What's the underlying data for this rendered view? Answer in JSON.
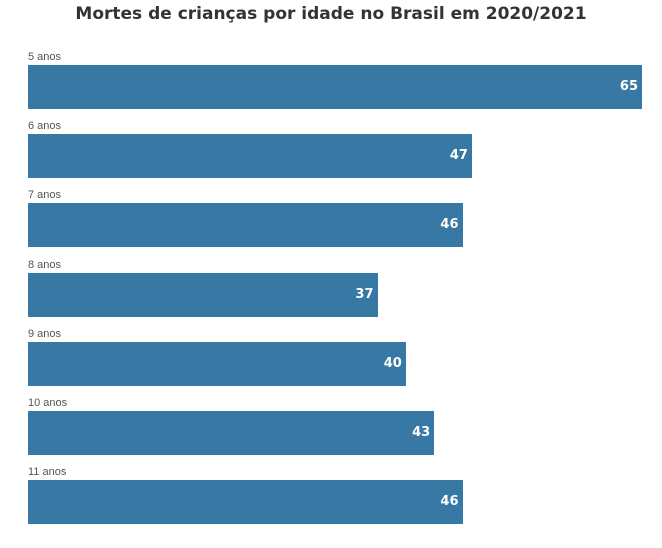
{
  "chart_data": {
    "type": "bar",
    "orientation": "horizontal",
    "title": "Mortes de crianças por idade no Brasil em 2020/2021",
    "categories": [
      "5 anos",
      "6 anos",
      "7 anos",
      "8 anos",
      "9 anos",
      "10 anos",
      "11 anos"
    ],
    "values": [
      65,
      47,
      46,
      37,
      40,
      43,
      46
    ],
    "value_labels": [
      "65",
      "47",
      "46",
      "37",
      "40",
      "43",
      "46"
    ],
    "xlim": [
      0,
      65
    ],
    "grid": false,
    "legend": "none",
    "colors": {
      "bar": "#3878a4",
      "value_text": "#ffffff",
      "title": "#333333",
      "category_text": "#555555"
    }
  }
}
